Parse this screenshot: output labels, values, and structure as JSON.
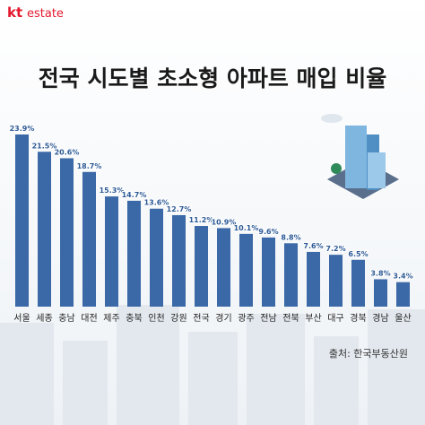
{
  "logo": {
    "brand": "kt",
    "name": "estate"
  },
  "chart_data": {
    "type": "bar",
    "title": "전국 시도별 초소형 아파트 매입 비율",
    "categories": [
      "서울",
      "세종",
      "충남",
      "대전",
      "제주",
      "충북",
      "인천",
      "강원",
      "전국",
      "경기",
      "광주",
      "전남",
      "전북",
      "부산",
      "대구",
      "경북",
      "경남",
      "울산"
    ],
    "values": [
      23.9,
      21.5,
      20.6,
      18.7,
      15.3,
      14.7,
      13.6,
      12.7,
      11.2,
      10.9,
      10.1,
      9.6,
      8.8,
      7.6,
      7.2,
      6.5,
      3.8,
      3.4
    ],
    "value_labels": [
      "23.9%",
      "21.5%",
      "20.6%",
      "18.7%",
      "15.3%",
      "14.7%",
      "13.6%",
      "12.7%",
      "11.2%",
      "10.9%",
      "10.1%",
      "9.6%",
      "8.8%",
      "7.6%",
      "7.2%",
      "6.5%",
      "3.8%",
      "3.4%"
    ],
    "color": "#3b68a6",
    "source": "출처: 한국부동산원"
  }
}
